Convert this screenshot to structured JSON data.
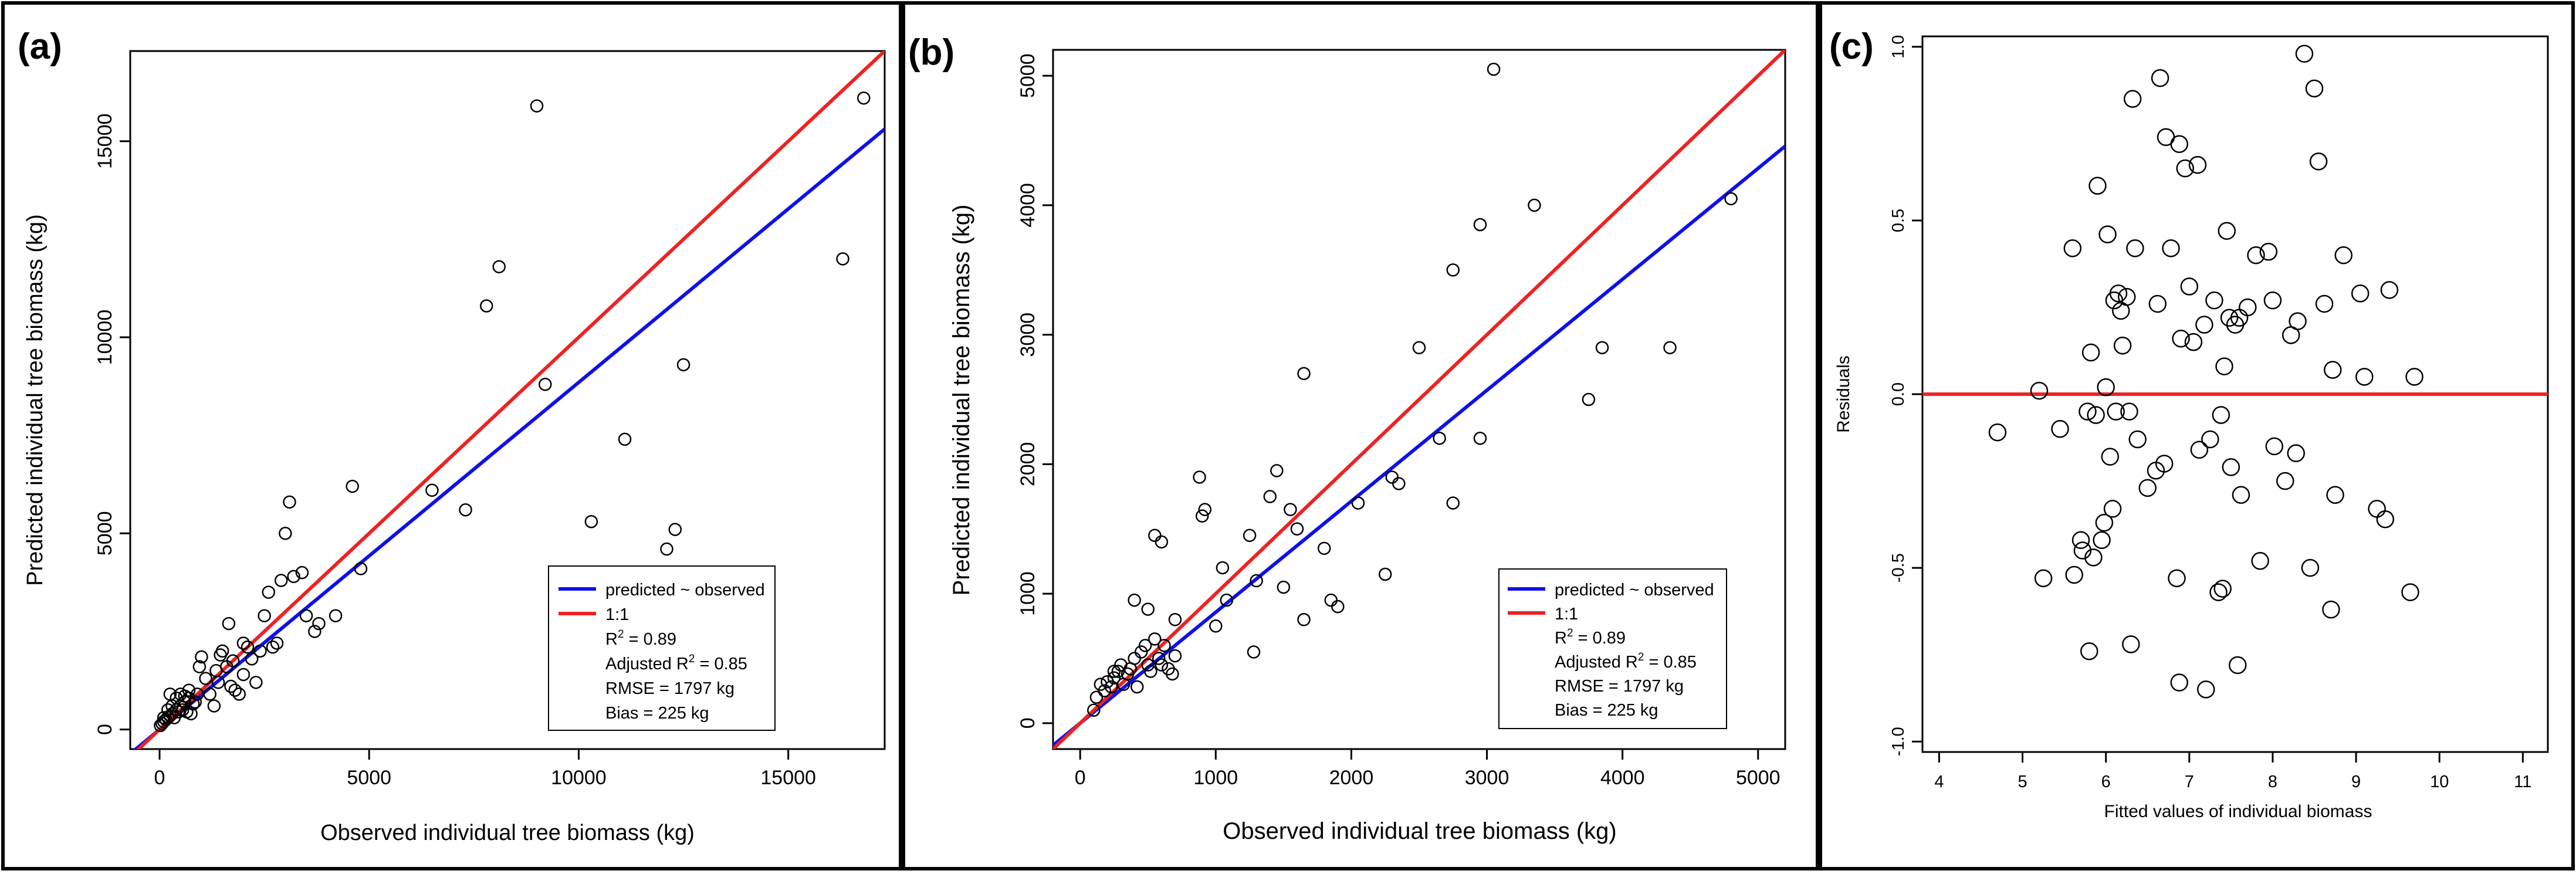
{
  "figure": {
    "colors": {
      "frame": "#000000",
      "blue": "#1010e8",
      "red": "#ee2222",
      "point": "#000000"
    }
  },
  "chart_data": [
    {
      "id": "a",
      "type": "scatter",
      "panel_label": "(a)",
      "title": "",
      "xlabel": "Observed individual tree biomass (kg)",
      "ylabel": "Predicted individual tree biomass (kg)",
      "xlim": [
        -700,
        17300
      ],
      "ylim": [
        -500,
        17300
      ],
      "x_ticks": [
        0,
        5000,
        10000,
        15000
      ],
      "y_ticks": [
        0,
        5000,
        10000,
        15000
      ],
      "lines": [
        {
          "name": "predicted ~ observed",
          "color": "#1010e8",
          "slope": 0.885,
          "intercept": 0
        },
        {
          "name": "1:1",
          "color": "#ee2222",
          "slope": 1.0,
          "intercept": 0
        }
      ],
      "legend": {
        "placement": "bottom-right",
        "entries": [
          "predicted ~ observed",
          "1:1"
        ],
        "stats": [
          "R^2 = 0.89",
          "Adjusted R^2 = 0.85",
          "RMSE = 1797 kg",
          "Bias = 225 kg"
        ]
      },
      "points": [
        [
          20,
          100
        ],
        [
          60,
          150
        ],
        [
          100,
          200
        ],
        [
          150,
          250
        ],
        [
          200,
          300
        ],
        [
          250,
          350
        ],
        [
          100,
          300
        ],
        [
          300,
          400
        ],
        [
          350,
          300
        ],
        [
          400,
          500
        ],
        [
          450,
          450
        ],
        [
          500,
          600
        ],
        [
          550,
          500
        ],
        [
          600,
          700
        ],
        [
          650,
          450
        ],
        [
          700,
          800
        ],
        [
          750,
          400
        ],
        [
          800,
          650
        ],
        [
          850,
          700
        ],
        [
          900,
          900
        ],
        [
          300,
          600
        ],
        [
          400,
          800
        ],
        [
          500,
          900
        ],
        [
          600,
          850
        ],
        [
          200,
          500
        ],
        [
          700,
          1000
        ],
        [
          950,
          1600
        ],
        [
          1000,
          1850
        ],
        [
          1100,
          1300
        ],
        [
          1200,
          900
        ],
        [
          1300,
          600
        ],
        [
          1350,
          1500
        ],
        [
          1400,
          1200
        ],
        [
          1450,
          1900
        ],
        [
          1500,
          2000
        ],
        [
          1600,
          1600
        ],
        [
          1700,
          1100
        ],
        [
          1750,
          1750
        ],
        [
          1800,
          1000
        ],
        [
          1900,
          900
        ],
        [
          2000,
          1400
        ],
        [
          2100,
          2100
        ],
        [
          2200,
          1800
        ],
        [
          2300,
          1200
        ],
        [
          2400,
          2000
        ],
        [
          2500,
          2900
        ],
        [
          2600,
          3500
        ],
        [
          2700,
          2100
        ],
        [
          2800,
          2200
        ],
        [
          2900,
          3800
        ],
        [
          3000,
          5000
        ],
        [
          3100,
          5800
        ],
        [
          3200,
          3900
        ],
        [
          3400,
          4000
        ],
        [
          3500,
          2900
        ],
        [
          3700,
          2500
        ],
        [
          3800,
          2700
        ],
        [
          4200,
          2900
        ],
        [
          4600,
          6200
        ],
        [
          4800,
          4100
        ],
        [
          6500,
          6100
        ],
        [
          7300,
          5600
        ],
        [
          7800,
          10800
        ],
        [
          8100,
          11800
        ],
        [
          9000,
          15900
        ],
        [
          9200,
          8800
        ],
        [
          10300,
          5300
        ],
        [
          11100,
          7400
        ],
        [
          12100,
          4600
        ],
        [
          12300,
          5100
        ],
        [
          12500,
          9300
        ],
        [
          16300,
          12000
        ],
        [
          16800,
          16100
        ],
        [
          250,
          900
        ],
        [
          1650,
          2700
        ],
        [
          2000,
          2200
        ]
      ]
    },
    {
      "id": "b",
      "type": "scatter",
      "panel_label": "(b)",
      "title": "",
      "xlabel": "Observed individual tree biomass (kg)",
      "ylabel": "Predicted individual tree biomass (kg)",
      "xlim": [
        -200,
        5200
      ],
      "ylim": [
        -200,
        5200
      ],
      "x_ticks": [
        0,
        1000,
        2000,
        3000,
        4000,
        5000
      ],
      "y_ticks": [
        0,
        1000,
        2000,
        3000,
        4000,
        5000
      ],
      "lines": [
        {
          "name": "predicted ~ observed",
          "color": "#1010e8",
          "slope": 0.857,
          "intercept": 0
        },
        {
          "name": "1:1",
          "color": "#ee2222",
          "slope": 1.0,
          "intercept": 0
        }
      ],
      "legend": {
        "placement": "bottom-right",
        "entries": [
          "predicted ~ observed",
          "1:1"
        ],
        "stats": [
          "R^2 = 0.89",
          "Adjusted R^2 = 0.85",
          "RMSE = 1797 kg",
          "Bias = 225 kg"
        ]
      },
      "points": [
        [
          100,
          100
        ],
        [
          120,
          200
        ],
        [
          150,
          300
        ],
        [
          180,
          250
        ],
        [
          200,
          320
        ],
        [
          230,
          280
        ],
        [
          250,
          350
        ],
        [
          280,
          400
        ],
        [
          300,
          450
        ],
        [
          320,
          300
        ],
        [
          350,
          380
        ],
        [
          370,
          420
        ],
        [
          400,
          500
        ],
        [
          420,
          280
        ],
        [
          450,
          550
        ],
        [
          480,
          600
        ],
        [
          500,
          450
        ],
        [
          520,
          400
        ],
        [
          550,
          650
        ],
        [
          580,
          500
        ],
        [
          600,
          450
        ],
        [
          620,
          600
        ],
        [
          650,
          420
        ],
        [
          680,
          380
        ],
        [
          700,
          520
        ],
        [
          400,
          950
        ],
        [
          500,
          880
        ],
        [
          600,
          1400
        ],
        [
          700,
          800
        ],
        [
          880,
          1900
        ],
        [
          900,
          1600
        ],
        [
          920,
          1650
        ],
        [
          1000,
          750
        ],
        [
          1050,
          1200
        ],
        [
          1080,
          950
        ],
        [
          1250,
          1450
        ],
        [
          1280,
          550
        ],
        [
          1300,
          1100
        ],
        [
          1400,
          1750
        ],
        [
          1450,
          1950
        ],
        [
          1500,
          1050
        ],
        [
          1550,
          1650
        ],
        [
          1600,
          1500
        ],
        [
          1650,
          2700
        ],
        [
          1650,
          800
        ],
        [
          1800,
          1350
        ],
        [
          1850,
          950
        ],
        [
          1900,
          900
        ],
        [
          2050,
          1700
        ],
        [
          2250,
          1150
        ],
        [
          2300,
          1900
        ],
        [
          2350,
          1850
        ],
        [
          2500,
          2900
        ],
        [
          2650,
          2200
        ],
        [
          2750,
          3500
        ],
        [
          2750,
          1700
        ],
        [
          2950,
          3850
        ],
        [
          2950,
          2200
        ],
        [
          3050,
          5050
        ],
        [
          3350,
          4000
        ],
        [
          3750,
          2500
        ],
        [
          3850,
          2900
        ],
        [
          4350,
          2900
        ],
        [
          4800,
          4050
        ],
        [
          550,
          1450
        ],
        [
          250,
          400
        ]
      ]
    },
    {
      "id": "c",
      "type": "scatter",
      "panel_label": "(c)",
      "title": "",
      "xlabel": "Fitted values of individual biomass",
      "ylabel": "Residuals",
      "xlim": [
        3.8,
        11.3
      ],
      "ylim": [
        -1.03,
        1.03
      ],
      "x_ticks": [
        4,
        5,
        6,
        7,
        8,
        9,
        10,
        11
      ],
      "y_ticks": [
        -1.0,
        -0.5,
        0.0,
        0.5,
        1.0
      ],
      "lines": [
        {
          "name": "zero",
          "color": "#ee2222",
          "slope": 0,
          "intercept": 0
        }
      ],
      "points": [
        [
          4.7,
          -0.11
        ],
        [
          5.2,
          0.01
        ],
        [
          5.25,
          -0.53
        ],
        [
          5.45,
          -0.1
        ],
        [
          5.6,
          0.42
        ],
        [
          5.62,
          -0.52
        ],
        [
          5.7,
          -0.42
        ],
        [
          5.72,
          -0.45
        ],
        [
          5.78,
          -0.05
        ],
        [
          5.8,
          -0.74
        ],
        [
          5.82,
          0.12
        ],
        [
          5.85,
          -0.47
        ],
        [
          5.88,
          -0.06
        ],
        [
          5.9,
          0.6
        ],
        [
          5.95,
          -0.42
        ],
        [
          5.98,
          -0.37
        ],
        [
          6.0,
          0.02
        ],
        [
          6.02,
          0.46
        ],
        [
          6.05,
          -0.18
        ],
        [
          6.08,
          -0.33
        ],
        [
          6.1,
          0.27
        ],
        [
          6.12,
          -0.05
        ],
        [
          6.15,
          0.29
        ],
        [
          6.18,
          0.24
        ],
        [
          6.2,
          0.14
        ],
        [
          6.25,
          0.28
        ],
        [
          6.28,
          -0.05
        ],
        [
          6.32,
          0.85
        ],
        [
          6.3,
          -0.72
        ],
        [
          6.35,
          0.42
        ],
        [
          6.38,
          -0.13
        ],
        [
          6.5,
          -0.27
        ],
        [
          6.6,
          -0.22
        ],
        [
          6.62,
          0.26
        ],
        [
          6.65,
          0.91
        ],
        [
          6.7,
          -0.2
        ],
        [
          6.72,
          0.74
        ],
        [
          6.78,
          0.42
        ],
        [
          6.85,
          -0.53
        ],
        [
          6.88,
          0.72
        ],
        [
          6.9,
          0.16
        ],
        [
          6.88,
          -0.83
        ],
        [
          6.95,
          0.65
        ],
        [
          7.0,
          0.31
        ],
        [
          7.05,
          0.15
        ],
        [
          7.1,
          0.66
        ],
        [
          7.12,
          -0.16
        ],
        [
          7.18,
          0.2
        ],
        [
          7.2,
          -0.85
        ],
        [
          7.25,
          -0.13
        ],
        [
          7.3,
          0.27
        ],
        [
          7.35,
          -0.57
        ],
        [
          7.38,
          -0.06
        ],
        [
          7.4,
          -0.56
        ],
        [
          7.42,
          0.08
        ],
        [
          7.45,
          0.47
        ],
        [
          7.48,
          0.22
        ],
        [
          7.5,
          -0.21
        ],
        [
          7.55,
          0.2
        ],
        [
          7.58,
          -0.78
        ],
        [
          7.6,
          0.22
        ],
        [
          7.62,
          -0.29
        ],
        [
          7.7,
          0.25
        ],
        [
          7.8,
          0.4
        ],
        [
          7.85,
          -0.48
        ],
        [
          7.95,
          0.41
        ],
        [
          8.0,
          0.27
        ],
        [
          8.02,
          -0.15
        ],
        [
          8.15,
          -0.25
        ],
        [
          8.22,
          0.17
        ],
        [
          8.28,
          -0.17
        ],
        [
          8.3,
          0.21
        ],
        [
          8.38,
          0.98
        ],
        [
          8.45,
          -0.5
        ],
        [
          8.5,
          0.88
        ],
        [
          8.55,
          0.67
        ],
        [
          8.62,
          0.26
        ],
        [
          8.7,
          -0.62
        ],
        [
          8.72,
          0.07
        ],
        [
          8.75,
          -0.29
        ],
        [
          8.85,
          0.4
        ],
        [
          9.1,
          0.05
        ],
        [
          9.05,
          0.29
        ],
        [
          9.25,
          -0.33
        ],
        [
          9.35,
          -0.36
        ],
        [
          9.4,
          0.3
        ],
        [
          9.65,
          -0.57
        ],
        [
          9.7,
          0.05
        ]
      ]
    }
  ]
}
